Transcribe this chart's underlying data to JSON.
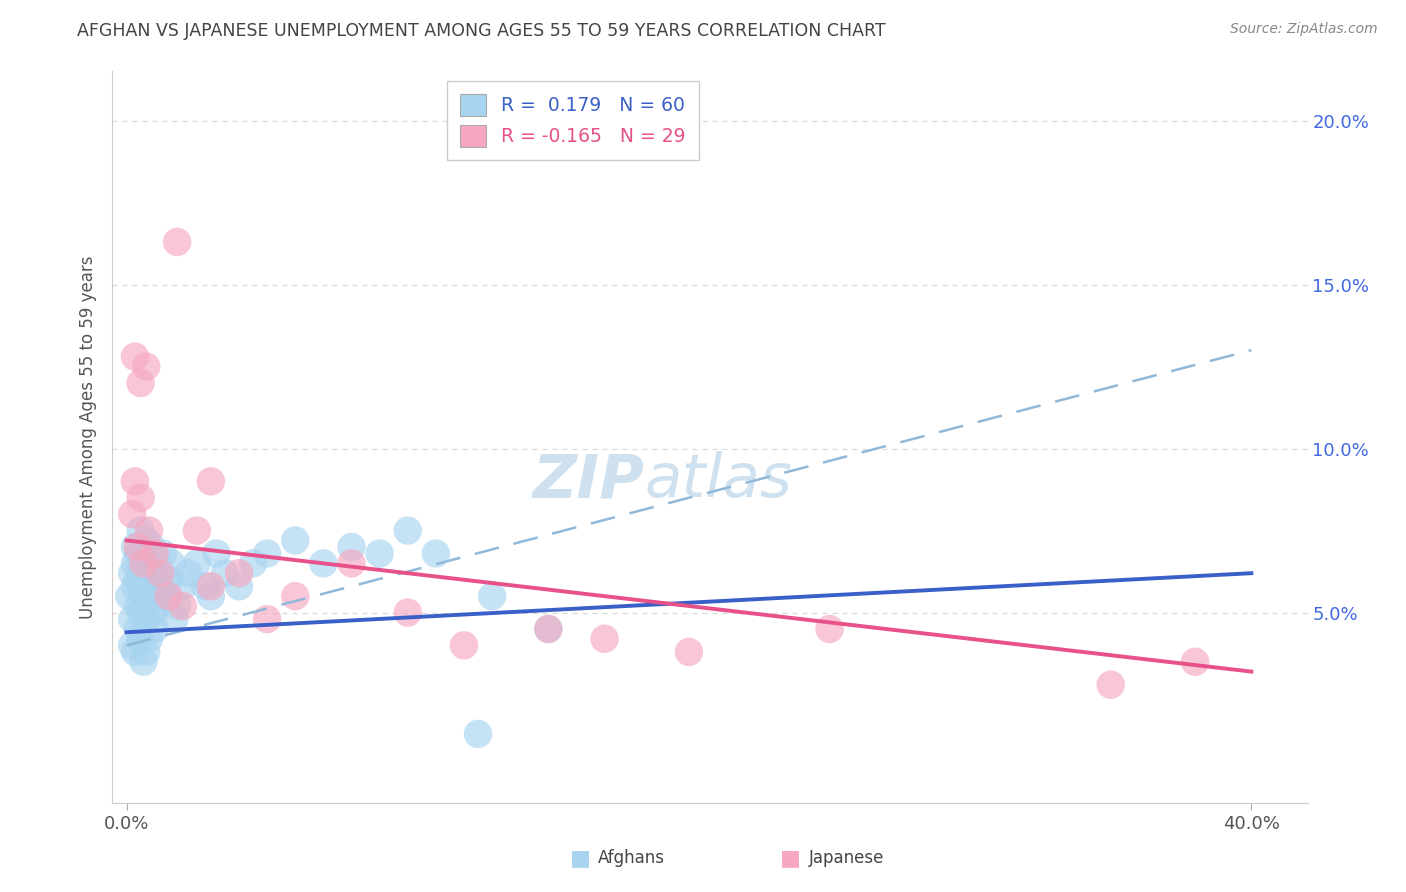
{
  "title": "AFGHAN VS JAPANESE UNEMPLOYMENT AMONG AGES 55 TO 59 YEARS CORRELATION CHART",
  "source": "Source: ZipAtlas.com",
  "ylabel": "Unemployment Among Ages 55 to 59 years",
  "ytick_labels": [
    "5.0%",
    "10.0%",
    "15.0%",
    "20.0%"
  ],
  "ytick_values": [
    0.05,
    0.1,
    0.15,
    0.2
  ],
  "xtick_labels": [
    "0.0%",
    "40.0%"
  ],
  "xtick_values": [
    0.0,
    0.4
  ],
  "legend_label1": "Afghans",
  "legend_label2": "Japanese",
  "legend_r1": "R =  0.179",
  "legend_n1": "N = 60",
  "legend_r2": "R = -0.165",
  "legend_n2": "N = 29",
  "afghan_fill": "#a8d4f0",
  "japanese_fill": "#f5a8c0",
  "afghan_line": "#3a5fc8",
  "japanese_line": "#e8508a",
  "dashed_line": "#90b8d8",
  "grid_color": "#d8d8d8",
  "title_color": "#444444",
  "source_color": "#888888",
  "ylabel_color": "#555555",
  "tick_color": "#4169E1",
  "xmin": 0.0,
  "xmax": 0.42,
  "ymin": -0.008,
  "ymax": 0.215,
  "watermark_text": "ZIPatlas",
  "watermark_color": "#c8dff0",
  "afg_x": [
    0.001,
    0.002,
    0.002,
    0.003,
    0.003,
    0.003,
    0.004,
    0.004,
    0.004,
    0.005,
    0.005,
    0.005,
    0.005,
    0.006,
    0.006,
    0.007,
    0.007,
    0.007,
    0.008,
    0.008,
    0.009,
    0.009,
    0.01,
    0.01,
    0.011,
    0.012,
    0.013,
    0.014,
    0.015,
    0.016,
    0.017,
    0.018,
    0.02,
    0.022,
    0.025,
    0.028,
    0.03,
    0.032,
    0.035,
    0.04,
    0.045,
    0.05,
    0.06,
    0.07,
    0.08,
    0.09,
    0.1,
    0.11,
    0.13,
    0.15,
    0.002,
    0.003,
    0.004,
    0.005,
    0.006,
    0.007,
    0.008,
    0.01,
    0.012,
    0.125
  ],
  "afg_y": [
    0.055,
    0.062,
    0.048,
    0.07,
    0.058,
    0.065,
    0.06,
    0.052,
    0.068,
    0.075,
    0.05,
    0.063,
    0.058,
    0.055,
    0.068,
    0.06,
    0.048,
    0.072,
    0.055,
    0.065,
    0.07,
    0.05,
    0.058,
    0.045,
    0.062,
    0.058,
    0.068,
    0.055,
    0.06,
    0.065,
    0.048,
    0.052,
    0.058,
    0.062,
    0.065,
    0.058,
    0.055,
    0.068,
    0.062,
    0.058,
    0.065,
    0.068,
    0.072,
    0.065,
    0.07,
    0.068,
    0.075,
    0.068,
    0.055,
    0.045,
    0.04,
    0.038,
    0.045,
    0.042,
    0.035,
    0.038,
    0.042,
    0.05,
    0.055,
    0.013
  ],
  "jpn_x": [
    0.002,
    0.003,
    0.004,
    0.005,
    0.006,
    0.008,
    0.01,
    0.012,
    0.015,
    0.018,
    0.02,
    0.025,
    0.03,
    0.04,
    0.05,
    0.06,
    0.08,
    0.1,
    0.12,
    0.15,
    0.17,
    0.2,
    0.25,
    0.35,
    0.003,
    0.005,
    0.007,
    0.03,
    0.38
  ],
  "jpn_y": [
    0.08,
    0.09,
    0.07,
    0.085,
    0.065,
    0.075,
    0.068,
    0.062,
    0.055,
    0.163,
    0.052,
    0.075,
    0.058,
    0.062,
    0.048,
    0.055,
    0.065,
    0.05,
    0.04,
    0.045,
    0.042,
    0.038,
    0.045,
    0.028,
    0.128,
    0.12,
    0.125,
    0.09,
    0.035
  ],
  "afg_trendline": [
    0.044,
    0.062
  ],
  "jpn_trendline": [
    0.072,
    0.032
  ],
  "dash_trendline": [
    0.04,
    0.13
  ]
}
